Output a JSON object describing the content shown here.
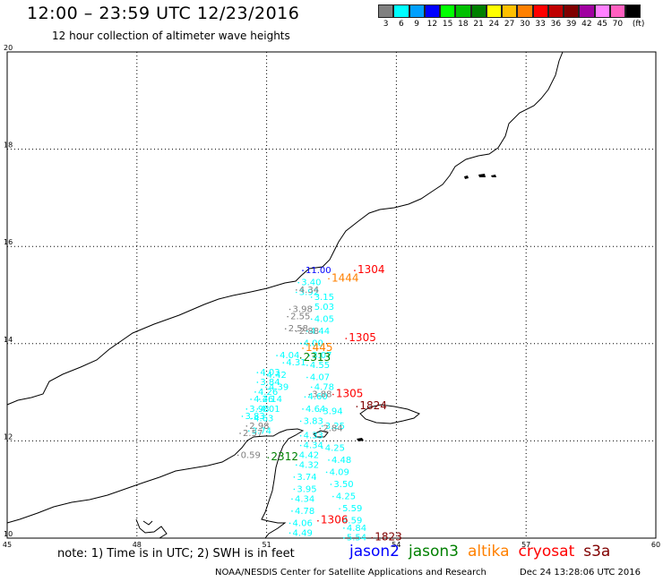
{
  "header": {
    "title": "12:00 – 23:59 UTC 12/23/2016",
    "subtitle": "12 hour collection of altimeter wave heights"
  },
  "legend": {
    "colors": [
      "#808080",
      "#00ffff",
      "#00a0ff",
      "#0000ff",
      "#00ff00",
      "#00c000",
      "#008000",
      "#ffff00",
      "#ffc000",
      "#ff8000",
      "#ff0000",
      "#c00000",
      "#800000",
      "#a000a0",
      "#ff80ff",
      "#ff60c0",
      "#000000"
    ],
    "labels": [
      "3",
      "6",
      "9",
      "12",
      "15",
      "18",
      "21",
      "24",
      "27",
      "30",
      "33",
      "36",
      "39",
      "42",
      "45",
      "70",
      "(ft)"
    ]
  },
  "axes": {
    "lon_ticks": [
      "45",
      "48",
      "51",
      "54",
      "57",
      "60"
    ],
    "lat_ticks": [
      "20",
      "18",
      "16",
      "14",
      "12",
      "10"
    ]
  },
  "tracks": [
    {
      "color": "#00ffff",
      "labels": [
        {
          "text": "3.40",
          "lon": 51.8,
          "lat": 15.2
        },
        {
          "text": "3.92",
          "lon": 51.75,
          "lat": 15.0
        },
        {
          "text": "3.15",
          "lon": 52.1,
          "lat": 14.9
        },
        {
          "text": "5.03",
          "lon": 52.1,
          "lat": 14.7
        },
        {
          "text": "4.05",
          "lon": 52.1,
          "lat": 14.45
        },
        {
          "text": "4.44",
          "lon": 52.0,
          "lat": 14.2
        },
        {
          "text": "4.00",
          "lon": 51.85,
          "lat": 13.95
        },
        {
          "text": "3.07",
          "lon": 52.05,
          "lat": 13.7
        },
        {
          "text": "4.55",
          "lon": 52.0,
          "lat": 13.5
        },
        {
          "text": "4.07",
          "lon": 52.0,
          "lat": 13.25
        },
        {
          "text": "4.78",
          "lon": 52.1,
          "lat": 13.05
        },
        {
          "text": "4.60",
          "lon": 51.95,
          "lat": 12.85
        },
        {
          "text": "4.64",
          "lon": 51.9,
          "lat": 12.6
        },
        {
          "text": "3.94",
          "lon": 52.3,
          "lat": 12.55
        },
        {
          "text": "3.83",
          "lon": 51.85,
          "lat": 12.35
        },
        {
          "text": "3.25",
          "lon": 52.35,
          "lat": 12.25
        },
        {
          "text": "4.33",
          "lon": 51.85,
          "lat": 12.05
        },
        {
          "text": "4.34",
          "lon": 51.85,
          "lat": 11.85
        },
        {
          "text": "4.25",
          "lon": 52.35,
          "lat": 11.8
        },
        {
          "text": "4.42",
          "lon": 51.75,
          "lat": 11.65
        },
        {
          "text": "4.48",
          "lon": 52.5,
          "lat": 11.55
        },
        {
          "text": "4.32",
          "lon": 51.75,
          "lat": 11.45
        },
        {
          "text": "4.09",
          "lon": 52.45,
          "lat": 11.3
        },
        {
          "text": "3.74",
          "lon": 51.7,
          "lat": 11.2
        },
        {
          "text": "3.50",
          "lon": 52.55,
          "lat": 11.05
        },
        {
          "text": "3.95",
          "lon": 51.7,
          "lat": 10.95
        },
        {
          "text": "4.25",
          "lon": 52.6,
          "lat": 10.8
        },
        {
          "text": "4.34",
          "lon": 51.65,
          "lat": 10.75
        },
        {
          "text": "5.59",
          "lon": 52.75,
          "lat": 10.55
        },
        {
          "text": "4.78",
          "lon": 51.65,
          "lat": 10.5
        },
        {
          "text": "4.59",
          "lon": 52.75,
          "lat": 10.3
        },
        {
          "text": "4.06",
          "lon": 51.6,
          "lat": 10.25
        },
        {
          "text": "4.84",
          "lon": 52.85,
          "lat": 10.15
        },
        {
          "text": "4.49",
          "lon": 51.6,
          "lat": 10.05
        },
        {
          "text": "5.54",
          "lon": 52.85,
          "lat": 9.95
        },
        {
          "text": "4.04",
          "lon": 51.3,
          "lat": 13.7
        },
        {
          "text": "4.31",
          "lon": 51.45,
          "lat": 13.55
        },
        {
          "text": "4.03",
          "lon": 50.85,
          "lat": 13.35
        },
        {
          "text": "4.42",
          "lon": 51.0,
          "lat": 13.3
        },
        {
          "text": "3.84",
          "lon": 50.85,
          "lat": 13.15
        },
        {
          "text": "4.39",
          "lon": 51.05,
          "lat": 13.05
        },
        {
          "text": "4.26",
          "lon": 50.8,
          "lat": 12.95
        },
        {
          "text": "4.14",
          "lon": 50.9,
          "lat": 12.8
        },
        {
          "text": "4.26",
          "lon": 50.7,
          "lat": 12.8
        },
        {
          "text": "3.98",
          "lon": 50.6,
          "lat": 12.6
        },
        {
          "text": "4.01",
          "lon": 50.85,
          "lat": 12.6
        },
        {
          "text": "3.83",
          "lon": 50.5,
          "lat": 12.45
        },
        {
          "text": "4.63",
          "lon": 50.7,
          "lat": 12.4
        },
        {
          "text": "3.74",
          "lon": 50.65,
          "lat": 12.15
        }
      ]
    },
    {
      "color": "#808080",
      "labels": [
        {
          "text": "4.34",
          "lon": 51.75,
          "lat": 15.05
        },
        {
          "text": "3.98",
          "lon": 51.6,
          "lat": 14.65
        },
        {
          "text": "2.55",
          "lon": 51.55,
          "lat": 14.5
        },
        {
          "text": "2.58",
          "lon": 51.5,
          "lat": 14.25
        },
        {
          "text": "2.88",
          "lon": 51.75,
          "lat": 14.2
        },
        {
          "text": "3.88",
          "lon": 52.05,
          "lat": 12.9
        },
        {
          "text": "2.84",
          "lon": 52.3,
          "lat": 12.2
        },
        {
          "text": "2.98",
          "lon": 50.6,
          "lat": 12.25
        },
        {
          "text": "2.57",
          "lon": 50.45,
          "lat": 12.1
        },
        {
          "text": "0.59",
          "lon": 50.4,
          "lat": 11.65
        }
      ]
    },
    {
      "color": "#0000ff",
      "labels": [
        {
          "text": "11.00",
          "lon": 51.9,
          "lat": 15.45
        }
      ]
    },
    {
      "color": "#ff8000",
      "labels": [
        {
          "text": "1444",
          "lon": 52.5,
          "lat": 15.28
        },
        {
          "text": "1445",
          "lon": 51.9,
          "lat": 13.85
        }
      ]
    },
    {
      "color": "#008000",
      "labels": [
        {
          "text": "2313",
          "lon": 51.85,
          "lat": 13.65
        },
        {
          "text": "2312",
          "lon": 51.1,
          "lat": 11.6
        }
      ]
    },
    {
      "color": "#ff0000",
      "labels": [
        {
          "text": "1304",
          "lon": 53.1,
          "lat": 15.45
        },
        {
          "text": "1305",
          "lon": 52.9,
          "lat": 14.05
        },
        {
          "text": "1305",
          "lon": 52.6,
          "lat": 12.9
        },
        {
          "text": "1306",
          "lon": 52.25,
          "lat": 10.3
        }
      ]
    },
    {
      "color": "#800000",
      "labels": [
        {
          "text": "1824",
          "lon": 53.15,
          "lat": 12.65
        },
        {
          "text": "1823",
          "lon": 53.5,
          "lat": 9.95
        }
      ]
    }
  ],
  "notes": {
    "note": "note:  1) Time is in UTC;  2) SWH is in feet",
    "satellites": [
      {
        "name": "jason2",
        "color": "#0000ff"
      },
      {
        "name": "jason3",
        "color": "#008000"
      },
      {
        "name": "altika",
        "color": "#ff8000"
      },
      {
        "name": "cryosat",
        "color": "#ff0000"
      },
      {
        "name": "s3a",
        "color": "#800000"
      }
    ],
    "credit": "NOAA/NESDIS Center for Satellite Applications and Research",
    "timestamp": "Dec 24 13:28:06 UTC 2016"
  }
}
